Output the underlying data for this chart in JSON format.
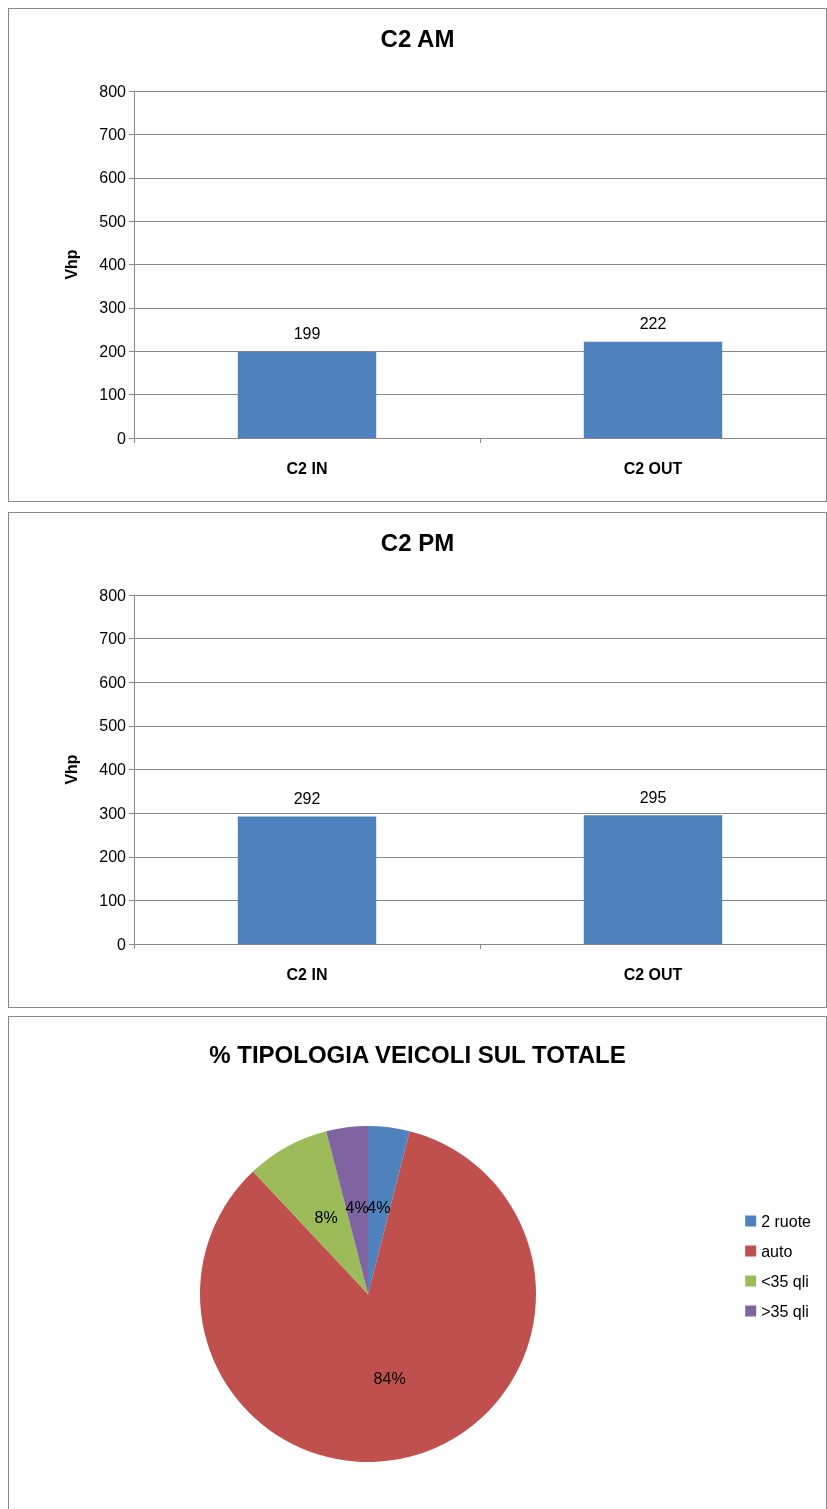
{
  "chart_data": [
    {
      "type": "bar",
      "title": "C2 AM",
      "ylabel": "Vhp",
      "categories": [
        "C2 IN",
        "C2 OUT"
      ],
      "values": [
        199,
        222
      ],
      "color": "#4f81bd",
      "ylim": [
        0,
        800
      ],
      "yticks": [
        0,
        100,
        200,
        300,
        400,
        500,
        600,
        700,
        800
      ],
      "grid": "y",
      "data_labels": true
    },
    {
      "type": "bar",
      "title": "C2 PM",
      "ylabel": "Vhp",
      "categories": [
        "C2 IN",
        "C2 OUT"
      ],
      "values": [
        292,
        295
      ],
      "color": "#4f81bd",
      "ylim": [
        0,
        800
      ],
      "yticks": [
        0,
        100,
        200,
        300,
        400,
        500,
        600,
        700,
        800
      ],
      "grid": "y",
      "data_labels": true
    },
    {
      "type": "pie",
      "title": "% TIPOLOGIA VEICOLI SUL TOTALE",
      "categories": [
        "2 ruote",
        "auto",
        "<35 qli",
        ">35 qli"
      ],
      "values": [
        4,
        84,
        8,
        4
      ],
      "value_labels": [
        "4%",
        "84%",
        "8%",
        "4%"
      ],
      "colors": [
        "#4f81bd",
        "#c0504d",
        "#9bbb59",
        "#8064a2"
      ],
      "legend": "right"
    }
  ]
}
